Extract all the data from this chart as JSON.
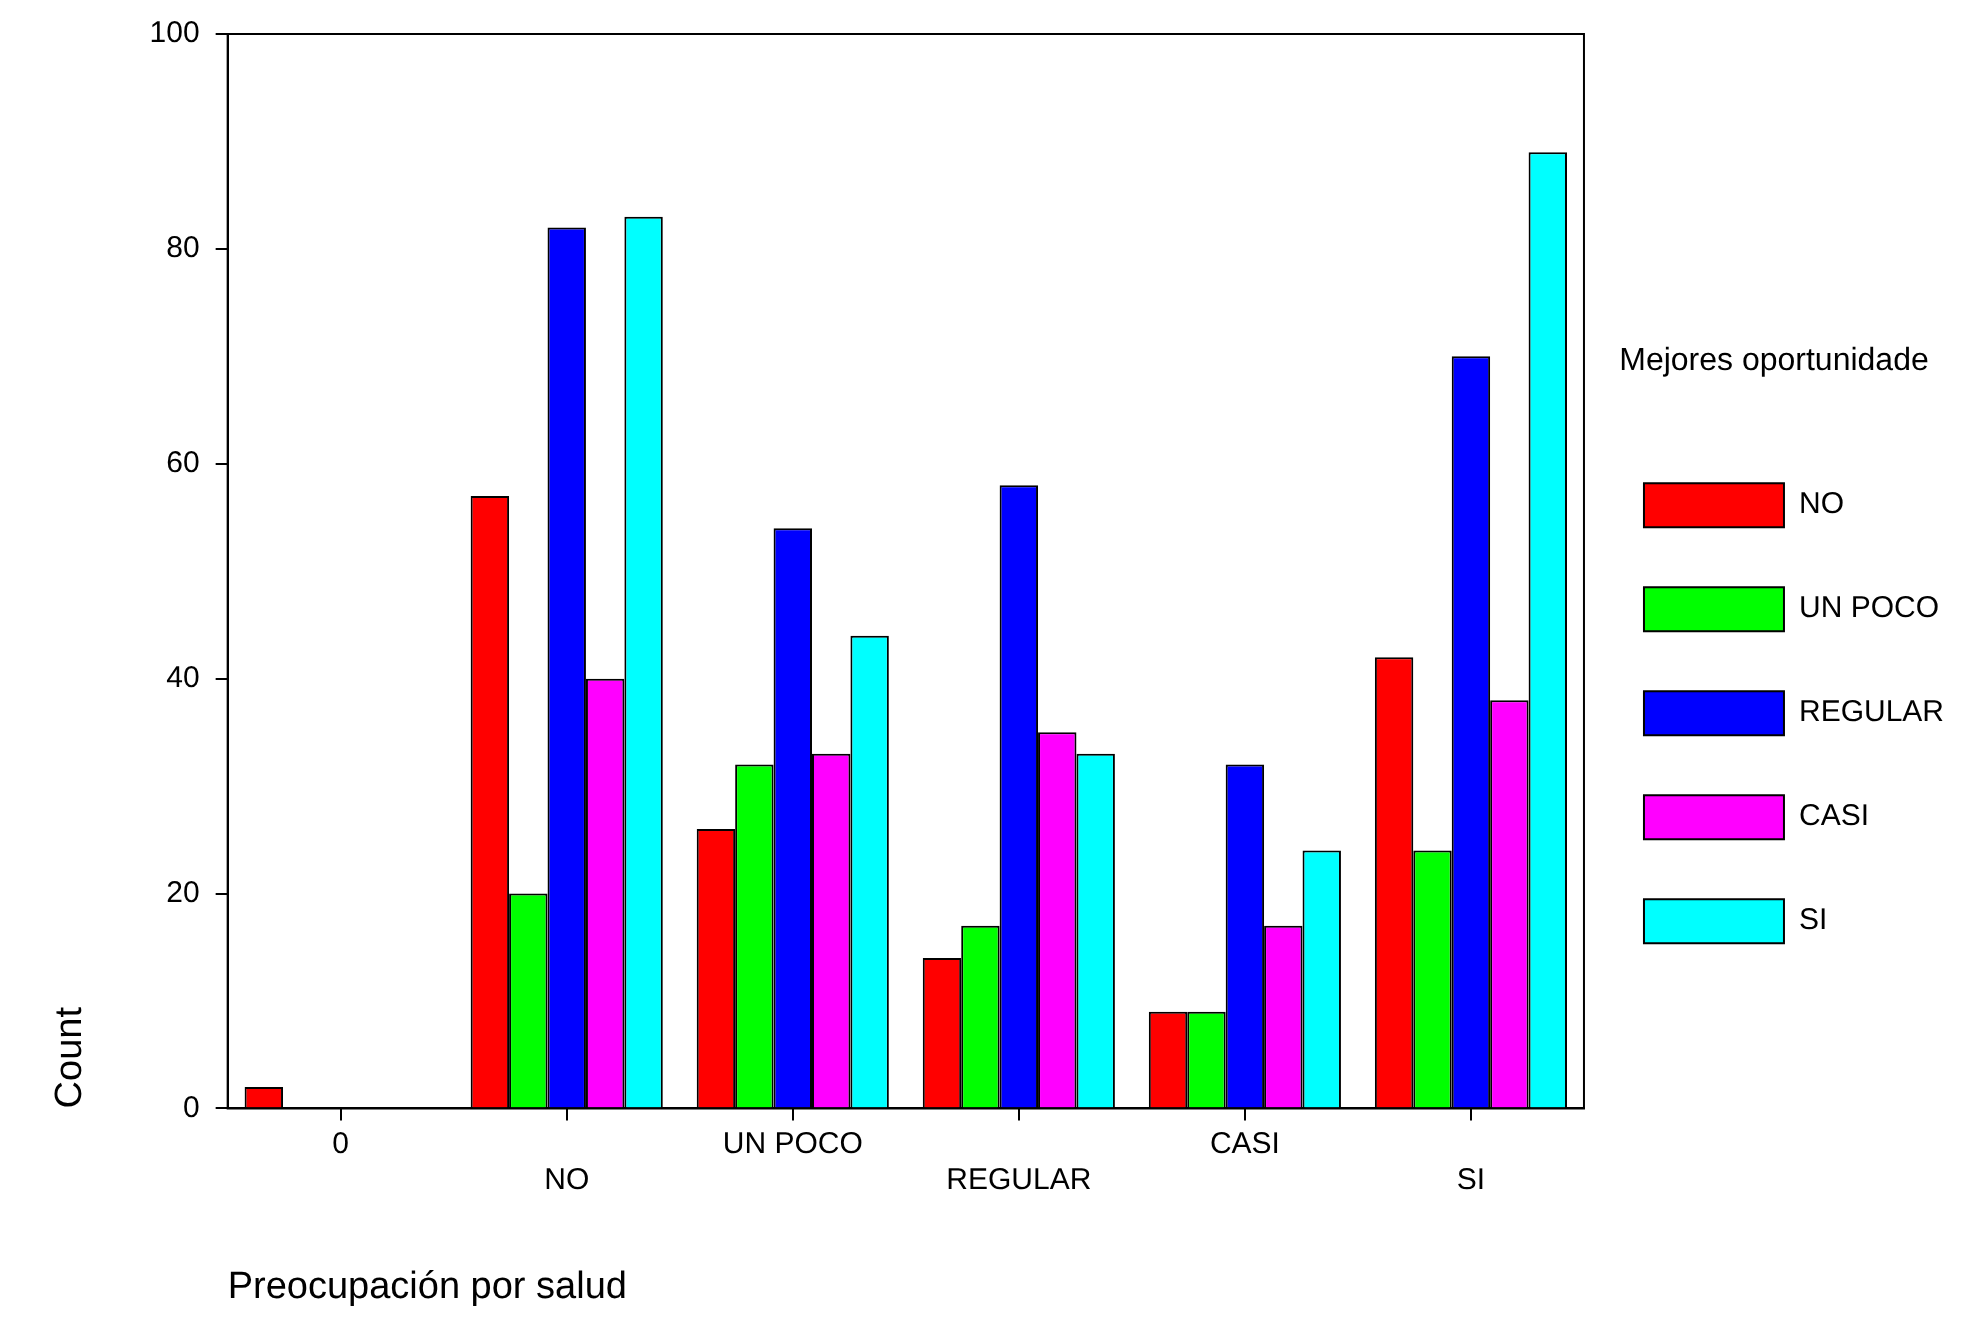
{
  "chart_data": {
    "type": "bar",
    "xlabel": "Preocupación por salud",
    "ylabel": "Count",
    "legend_title": "Mejores oportunidade",
    "categories": [
      "0",
      "NO",
      "UN POCO",
      "REGULAR",
      "CASI",
      "SI"
    ],
    "series": [
      {
        "name": "NO",
        "color": "#ff0000",
        "values": [
          2,
          57,
          26,
          14,
          9,
          42
        ]
      },
      {
        "name": "UN POCO",
        "color": "#00ff00",
        "values": [
          0,
          20,
          32,
          17,
          9,
          24
        ]
      },
      {
        "name": "REGULAR",
        "color": "#0000ff",
        "values": [
          0,
          82,
          54,
          58,
          32,
          70
        ]
      },
      {
        "name": "CASI",
        "color": "#ff00ff",
        "values": [
          0,
          40,
          33,
          35,
          17,
          38
        ]
      },
      {
        "name": "SI",
        "color": "#00ffff",
        "values": [
          0,
          83,
          44,
          33,
          24,
          89
        ]
      }
    ],
    "ylim": [
      0,
      100
    ],
    "yticks": [
      0,
      20,
      40,
      60,
      80,
      100
    ],
    "grid": false,
    "legend": "right"
  }
}
